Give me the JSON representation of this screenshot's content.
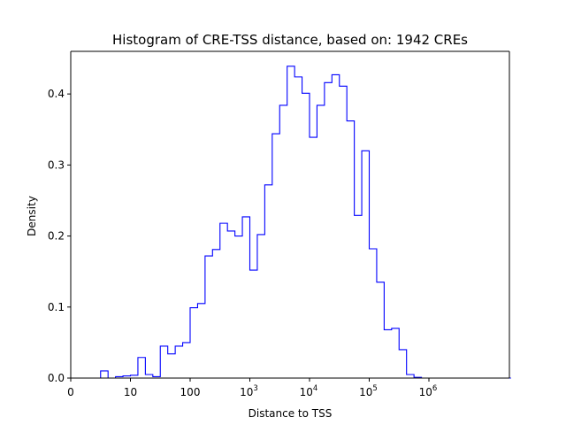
{
  "chart_data": {
    "type": "histogram",
    "title": "Histogram of CRE-TSS distance, based on: 1942 CREs",
    "xlabel": "Distance to TSS",
    "ylabel": "Density",
    "x_scale": "log-like (0, 10, 100, 10^3 ... 10^6)",
    "x_ticks": [
      {
        "label": "0",
        "base": "",
        "exp": ""
      },
      {
        "label": "10",
        "base": "",
        "exp": ""
      },
      {
        "label": "100",
        "base": "",
        "exp": ""
      },
      {
        "label": "",
        "base": "10",
        "exp": "3"
      },
      {
        "label": "",
        "base": "10",
        "exp": "4"
      },
      {
        "label": "",
        "base": "10",
        "exp": "5"
      },
      {
        "label": "",
        "base": "10",
        "exp": "6"
      }
    ],
    "y_ticks": [
      "0.0",
      "0.1",
      "0.2",
      "0.3",
      "0.4"
    ],
    "ylim": [
      0,
      0.46
    ],
    "grid": false,
    "line_color": "#0000ff",
    "bin_width_log10": 0.125,
    "bins_start_log10": 0.5,
    "densities": [
      0.01,
      0.0,
      0.002,
      0.003,
      0.004,
      0.029,
      0.005,
      0.002,
      0.045,
      0.034,
      0.045,
      0.05,
      0.099,
      0.105,
      0.172,
      0.181,
      0.218,
      0.207,
      0.2,
      0.227,
      0.152,
      0.202,
      0.272,
      0.344,
      0.384,
      0.439,
      0.424,
      0.401,
      0.339,
      0.384,
      0.416,
      0.427,
      0.411,
      0.362,
      0.229,
      0.32,
      0.182,
      0.135,
      0.068,
      0.07,
      0.04,
      0.005,
      0.001,
      0.0,
      0.0,
      0.0,
      0.0,
      0.0,
      0.0,
      0.0,
      0.0,
      0.0,
      0.0,
      0.0,
      0.0
    ]
  }
}
